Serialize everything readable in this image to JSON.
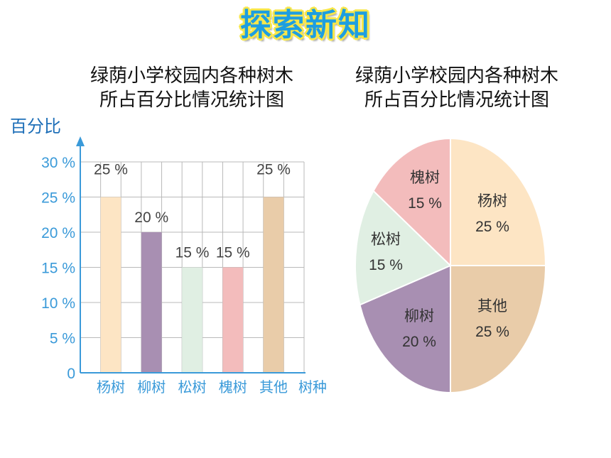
{
  "header": {
    "title": "探索新知"
  },
  "chart_data": [
    {
      "type": "bar",
      "title_line1": "绿荫小学校园内各种树木",
      "title_line2": "所占百分比情况统计图",
      "ylabel": "百分比",
      "xlabel": "树种",
      "ylim": [
        0,
        30
      ],
      "yticks": [
        "0",
        "5 %",
        "10 %",
        "15 %",
        "20 %",
        "25 %",
        "30 %"
      ],
      "grid": true,
      "categories": [
        "杨树",
        "柳树",
        "松树",
        "槐树",
        "其他"
      ],
      "values": [
        25,
        20,
        15,
        15,
        25
      ],
      "value_labels": [
        "25 %",
        "20 %",
        "15 %",
        "15 %",
        "25 %"
      ],
      "colors": [
        "#fde5c4",
        "#a88fb2",
        "#e0efe3",
        "#f3bcbc",
        "#e9cca9"
      ]
    },
    {
      "type": "pie",
      "title_line1": "绿荫小学校园内各种树木",
      "title_line2": "所占百分比情况统计图",
      "slices": [
        {
          "label": "杨树",
          "value": 25,
          "value_label": "25 %",
          "color": "#fde5c4"
        },
        {
          "label": "其他",
          "value": 25,
          "value_label": "25 %",
          "color": "#e9cca9"
        },
        {
          "label": "柳树",
          "value": 20,
          "value_label": "20 %",
          "color": "#a88fb2"
        },
        {
          "label": "松树",
          "value": 15,
          "value_label": "15 %",
          "color": "#e0efe3"
        },
        {
          "label": "槐树",
          "value": 15,
          "value_label": "15 %",
          "color": "#f3bcbc"
        }
      ]
    }
  ]
}
